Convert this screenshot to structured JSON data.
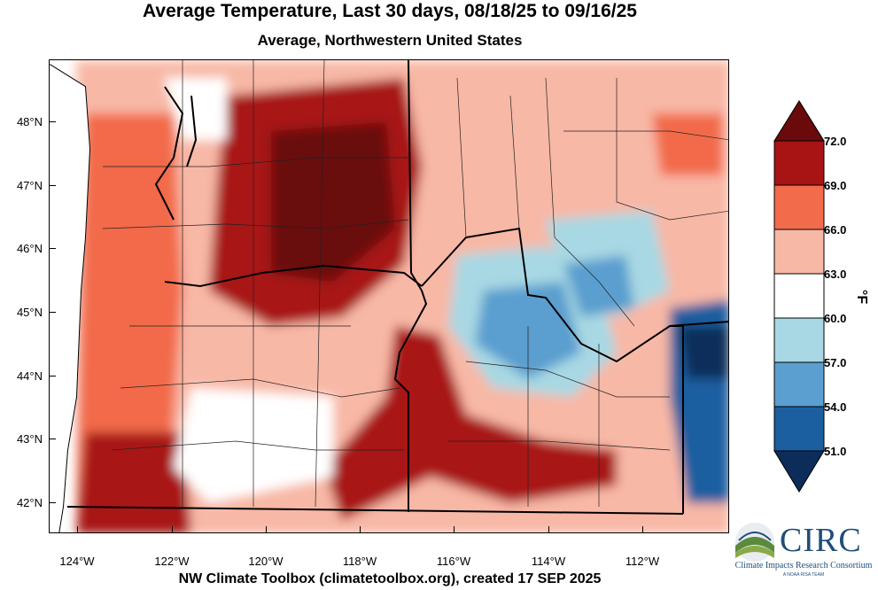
{
  "title": "Average Temperature, Last 30 days, 08/18/25 to 09/16/25",
  "subtitle": "Average, Northwestern United States",
  "footer": "NW Climate Toolbox (climatetoolbox.org), created 17 SEP 2025",
  "lat_labels": [
    "48°N",
    "47°N",
    "46°N",
    "45°N",
    "44°N",
    "43°N",
    "42°N"
  ],
  "lon_labels": [
    "124°W",
    "122°W",
    "120°W",
    "118°W",
    "116°W",
    "114°W",
    "112°W"
  ],
  "legend": {
    "unit": "°F",
    "values": [
      "72.0",
      "69.0",
      "66.0",
      "63.0",
      "60.0",
      "57.0",
      "54.0",
      "51.0"
    ],
    "colors": [
      "#6a0a0a",
      "#a81414",
      "#f26b4a",
      "#f8b8a6",
      "#ffffff",
      "#a8d8e3",
      "#5a9fcf",
      "#1b5fa0",
      "#0c2d5a"
    ]
  },
  "logo": {
    "name": "CIRC",
    "full_name": "Climate Impacts Research Consortium",
    "tagline": "A NOAA RISA TEAM"
  }
}
